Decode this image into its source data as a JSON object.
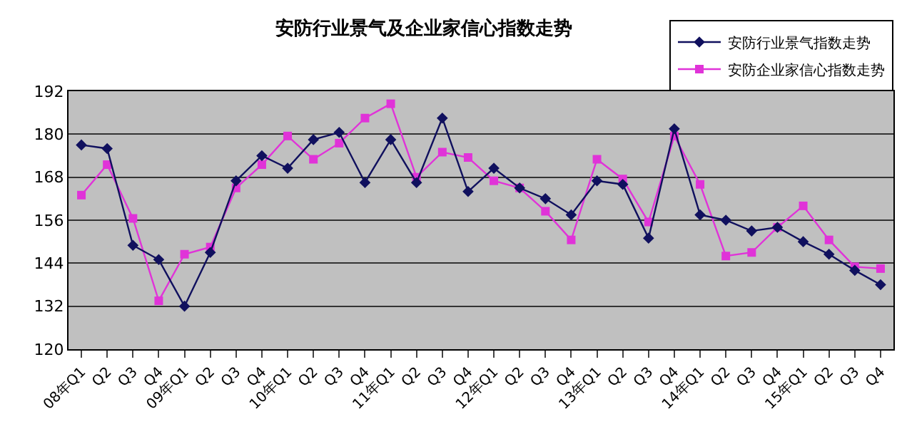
{
  "chart_data": {
    "type": "line",
    "title": "安防行业景气及企业家信心指数走势",
    "categories": [
      "08年Q1",
      "Q2",
      "Q3",
      "Q4",
      "09年Q1",
      "Q2",
      "Q3",
      "Q4",
      "10年Q1",
      "Q2",
      "Q3",
      "Q4",
      "11年Q1",
      "Q2",
      "Q3",
      "Q4",
      "12年Q1",
      "Q2",
      "Q3",
      "Q4",
      "13年Q1",
      "Q2",
      "Q3",
      "Q4",
      "14年Q1",
      "Q2",
      "Q3",
      "Q4",
      "15年Q1",
      "Q2",
      "Q3",
      "Q4"
    ],
    "series": [
      {
        "name": "安防行业景气指数走势",
        "color": "#10105e",
        "marker": "diamond",
        "values": [
          177,
          176,
          149,
          145,
          132,
          147,
          167,
          174,
          170.5,
          178.5,
          180.5,
          166.5,
          178.5,
          166.5,
          184.5,
          164,
          170.5,
          165,
          162,
          157.5,
          167,
          166,
          151,
          181.5,
          157.5,
          156,
          153,
          154,
          150,
          146.5,
          142,
          138
        ]
      },
      {
        "name": "安防企业家信心指数走势",
        "color": "#e033d8",
        "marker": "square",
        "values": [
          163,
          171.5,
          156.5,
          133.5,
          146.5,
          148.5,
          165,
          171.5,
          179.5,
          173,
          177.5,
          184.5,
          188.5,
          168,
          175,
          173.5,
          167,
          165,
          158.5,
          150.5,
          173,
          167.5,
          155.5,
          179.5,
          166,
          146,
          147,
          154,
          160,
          150.5,
          143,
          142.5
        ]
      }
    ],
    "ylim": [
      120,
      192
    ],
    "yticks": [
      120,
      132,
      144,
      156,
      168,
      180,
      192
    ],
    "grid": "y",
    "legend": "top right",
    "line_style": "solid"
  }
}
